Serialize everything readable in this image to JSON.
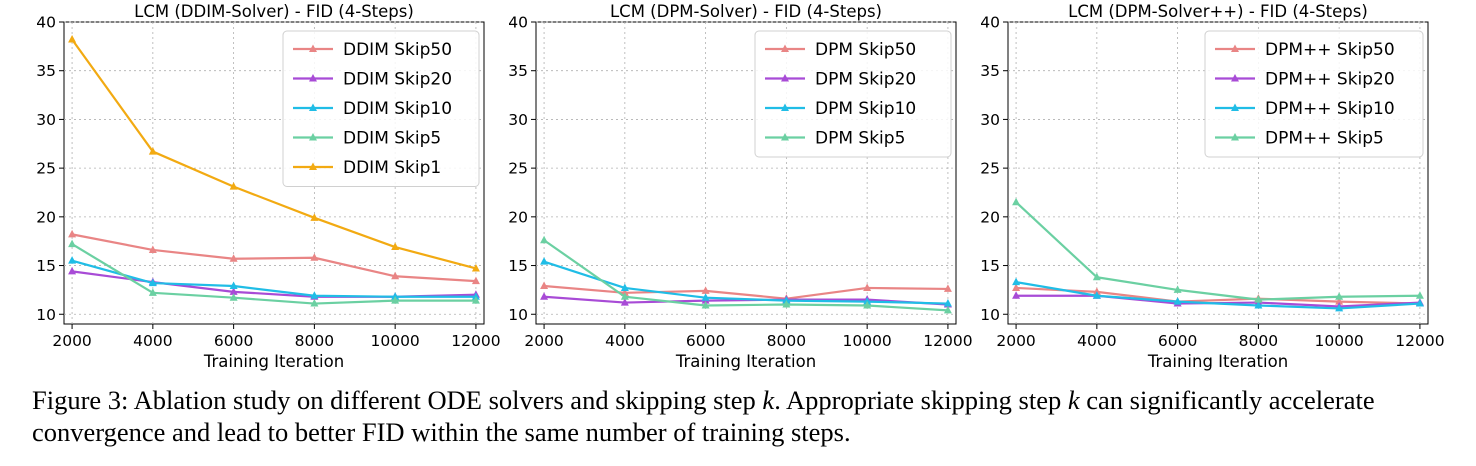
{
  "figure": {
    "caption_label": "Figure 3:",
    "caption_text": "Ablation study on different ODE solvers and skipping step k. Appropriate skipping step k can significantly accelerate convergence and lead to better FID within the same number of training steps."
  },
  "colors": {
    "Skip50": "#e98585",
    "Skip20": "#a84bd6",
    "Skip10": "#20bde6",
    "Skip5": "#6bd0a2",
    "Skip1": "#f2aa12"
  },
  "chart_data": [
    {
      "type": "line",
      "title": "LCM (DDIM-Solver) - FID (4-Steps)",
      "xlabel": "Training Iteration",
      "ylabel": "",
      "x": [
        2000,
        4000,
        6000,
        8000,
        10000,
        12000
      ],
      "xlim": [
        1800,
        12200
      ],
      "ylim": [
        9,
        40
      ],
      "yticks": [
        10,
        15,
        20,
        25,
        30,
        35,
        40
      ],
      "grid": true,
      "marker": "triangle",
      "legend_position": "top-right",
      "series": [
        {
          "name": "DDIM Skip50",
          "color_key": "Skip50",
          "values": [
            18.2,
            16.6,
            15.7,
            15.8,
            13.9,
            13.4
          ]
        },
        {
          "name": "DDIM Skip20",
          "color_key": "Skip20",
          "values": [
            14.4,
            13.3,
            12.3,
            11.8,
            11.8,
            12.0
          ]
        },
        {
          "name": "DDIM Skip10",
          "color_key": "Skip10",
          "values": [
            15.5,
            13.2,
            12.9,
            11.9,
            11.8,
            11.8
          ]
        },
        {
          "name": "DDIM Skip5",
          "color_key": "Skip5",
          "values": [
            17.2,
            12.2,
            11.7,
            11.1,
            11.4,
            11.4
          ]
        },
        {
          "name": "DDIM Skip1",
          "color_key": "Skip1",
          "values": [
            38.2,
            26.7,
            23.1,
            19.9,
            16.9,
            14.7
          ]
        }
      ]
    },
    {
      "type": "line",
      "title": "LCM (DPM-Solver) - FID (4-Steps)",
      "xlabel": "Training Iteration",
      "ylabel": "",
      "x": [
        2000,
        4000,
        6000,
        8000,
        10000,
        12000
      ],
      "xlim": [
        1800,
        12200
      ],
      "ylim": [
        9,
        40
      ],
      "yticks": [
        10,
        15,
        20,
        25,
        30,
        35,
        40
      ],
      "grid": true,
      "marker": "triangle",
      "legend_position": "top-right",
      "series": [
        {
          "name": "DPM Skip50",
          "color_key": "Skip50",
          "values": [
            12.9,
            12.2,
            12.4,
            11.6,
            12.7,
            12.6
          ]
        },
        {
          "name": "DPM Skip20",
          "color_key": "Skip20",
          "values": [
            11.8,
            11.2,
            11.4,
            11.5,
            11.5,
            11.0
          ]
        },
        {
          "name": "DPM Skip10",
          "color_key": "Skip10",
          "values": [
            15.4,
            12.7,
            11.7,
            11.4,
            11.3,
            11.1
          ]
        },
        {
          "name": "DPM Skip5",
          "color_key": "Skip5",
          "values": [
            17.6,
            11.8,
            10.9,
            11.0,
            10.9,
            10.4
          ]
        }
      ]
    },
    {
      "type": "line",
      "title": "LCM (DPM-Solver++) - FID (4-Steps)",
      "xlabel": "Training Iteration",
      "ylabel": "",
      "x": [
        2000,
        4000,
        6000,
        8000,
        10000,
        12000
      ],
      "xlim": [
        1800,
        12200
      ],
      "ylim": [
        9,
        40
      ],
      "yticks": [
        10,
        15,
        20,
        25,
        30,
        35,
        40
      ],
      "grid": true,
      "marker": "triangle",
      "legend_position": "top-right",
      "series": [
        {
          "name": "DPM++ Skip50",
          "color_key": "Skip50",
          "values": [
            12.7,
            12.3,
            11.3,
            11.6,
            11.3,
            11.1
          ]
        },
        {
          "name": "DPM++ Skip20",
          "color_key": "Skip20",
          "values": [
            11.9,
            11.9,
            11.1,
            11.2,
            10.8,
            11.2
          ]
        },
        {
          "name": "DPM++ Skip10",
          "color_key": "Skip10",
          "values": [
            13.3,
            11.9,
            11.3,
            10.9,
            10.6,
            11.1
          ]
        },
        {
          "name": "DPM++ Skip5",
          "color_key": "Skip5",
          "values": [
            21.5,
            13.8,
            12.5,
            11.5,
            11.8,
            11.9
          ]
        }
      ]
    }
  ]
}
